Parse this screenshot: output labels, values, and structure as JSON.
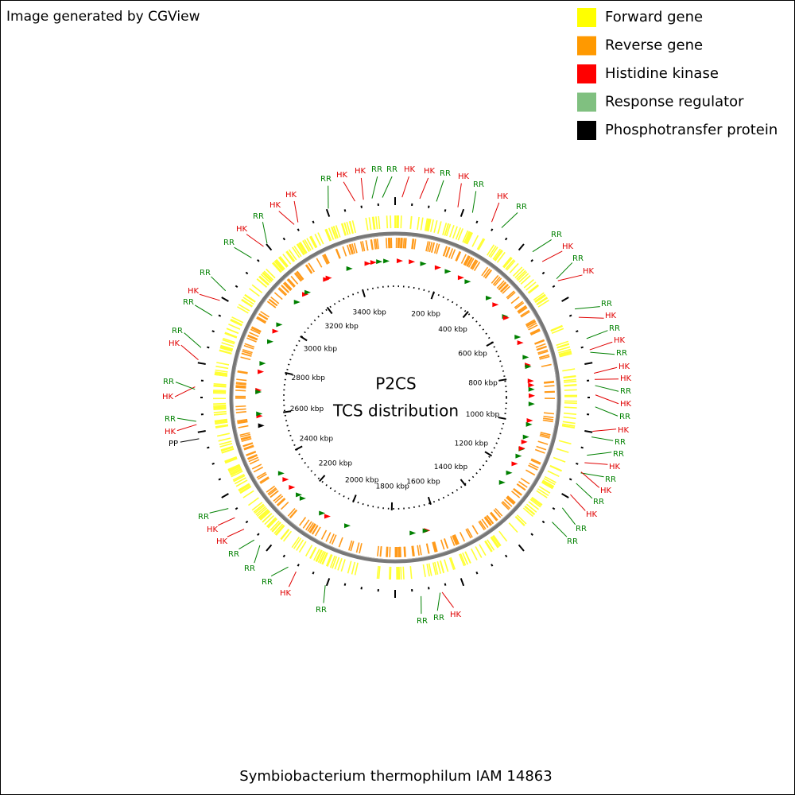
{
  "header": {
    "credit": "Image generated by CGView"
  },
  "legend": [
    {
      "label": "Forward gene",
      "color": "#ffff00"
    },
    {
      "label": "Reverse gene",
      "color": "#ff9900"
    },
    {
      "label": "Histidine kinase",
      "color": "#ff0000"
    },
    {
      "label": "Response regulator",
      "color": "#80c080"
    },
    {
      "label": "Phosphotransfer protein",
      "color": "#000000"
    }
  ],
  "center": {
    "title": "P2CS",
    "subtitle": "TCS distribution"
  },
  "ruler": [
    "200 kbp",
    "400 kbp",
    "600 kbp",
    "800 kbp",
    "1000 kbp",
    "1200 kbp",
    "1400 kbp",
    "1600 kbp",
    "1800 kbp",
    "2000 kbp",
    "2200 kbp",
    "2400 kbp",
    "2600 kbp",
    "2800 kbp",
    "3000 kbp",
    "3200 kbp",
    "3400 kbp"
  ],
  "features": [
    {
      "label": "PP",
      "color": "#000000"
    },
    {
      "label": "HK",
      "color": "#e00000"
    },
    {
      "label": "RR",
      "color": "#008000"
    },
    {
      "label": "HK",
      "color": "#e00000"
    },
    {
      "label": "RR",
      "color": "#008000"
    },
    {
      "label": "HK",
      "color": "#e00000"
    },
    {
      "label": "RR",
      "color": "#008000"
    },
    {
      "label": "RR",
      "color": "#008000"
    },
    {
      "label": "HK",
      "color": "#e00000"
    },
    {
      "label": "RR",
      "color": "#008000"
    },
    {
      "label": "RR",
      "color": "#008000"
    },
    {
      "label": "HK",
      "color": "#e00000"
    },
    {
      "label": "RR",
      "color": "#008000"
    },
    {
      "label": "HK",
      "color": "#e00000"
    },
    {
      "label": "HK",
      "color": "#e00000"
    },
    {
      "label": "RR",
      "color": "#008000"
    },
    {
      "label": "HK",
      "color": "#e00000"
    },
    {
      "label": "HK",
      "color": "#e00000"
    },
    {
      "label": "RR",
      "color": "#008000"
    },
    {
      "label": "RR",
      "color": "#008000"
    },
    {
      "label": "HK",
      "color": "#e00000"
    },
    {
      "label": "HK",
      "color": "#e00000"
    },
    {
      "label": "RR",
      "color": "#008000"
    },
    {
      "label": "HK",
      "color": "#e00000"
    },
    {
      "label": "RR",
      "color": "#008000"
    },
    {
      "label": "HK",
      "color": "#e00000"
    },
    {
      "label": "RR",
      "color": "#008000"
    },
    {
      "label": "RR",
      "color": "#008000"
    },
    {
      "label": "HK",
      "color": "#e00000"
    },
    {
      "label": "RR",
      "color": "#008000"
    },
    {
      "label": "HK",
      "color": "#e00000"
    },
    {
      "label": "RR",
      "color": "#008000"
    },
    {
      "label": "HK",
      "color": "#e00000"
    },
    {
      "label": "RR",
      "color": "#008000"
    },
    {
      "label": "HK",
      "color": "#e00000"
    },
    {
      "label": "RR",
      "color": "#008000"
    },
    {
      "label": "HK",
      "color": "#e00000"
    },
    {
      "label": "HK",
      "color": "#e00000"
    },
    {
      "label": "RR",
      "color": "#008000"
    },
    {
      "label": "HK",
      "color": "#e00000"
    },
    {
      "label": "RR",
      "color": "#008000"
    },
    {
      "label": "HK",
      "color": "#e00000"
    },
    {
      "label": "RR",
      "color": "#008000"
    },
    {
      "label": "RR",
      "color": "#008000"
    },
    {
      "label": "HK",
      "color": "#e00000"
    },
    {
      "label": "RR",
      "color": "#008000"
    },
    {
      "label": "HK",
      "color": "#e00000"
    },
    {
      "label": "RR",
      "color": "#008000"
    },
    {
      "label": "HK",
      "color": "#e00000"
    },
    {
      "label": "RR",
      "color": "#008000"
    },
    {
      "label": "RR",
      "color": "#008000"
    },
    {
      "label": "HK",
      "color": "#e00000"
    },
    {
      "label": "RR",
      "color": "#008000"
    },
    {
      "label": "RR",
      "color": "#008000"
    },
    {
      "label": "RR",
      "color": "#008000"
    },
    {
      "label": "HK",
      "color": "#e00000"
    },
    {
      "label": "RR",
      "color": "#008000"
    },
    {
      "label": "RR",
      "color": "#008000"
    },
    {
      "label": "RR",
      "color": "#008000"
    },
    {
      "label": "HK",
      "color": "#e00000"
    },
    {
      "label": "HK",
      "color": "#e00000"
    },
    {
      "label": "RR",
      "color": "#008000"
    }
  ],
  "footer": "Symbiobacterium thermophilum IAM 14863"
}
